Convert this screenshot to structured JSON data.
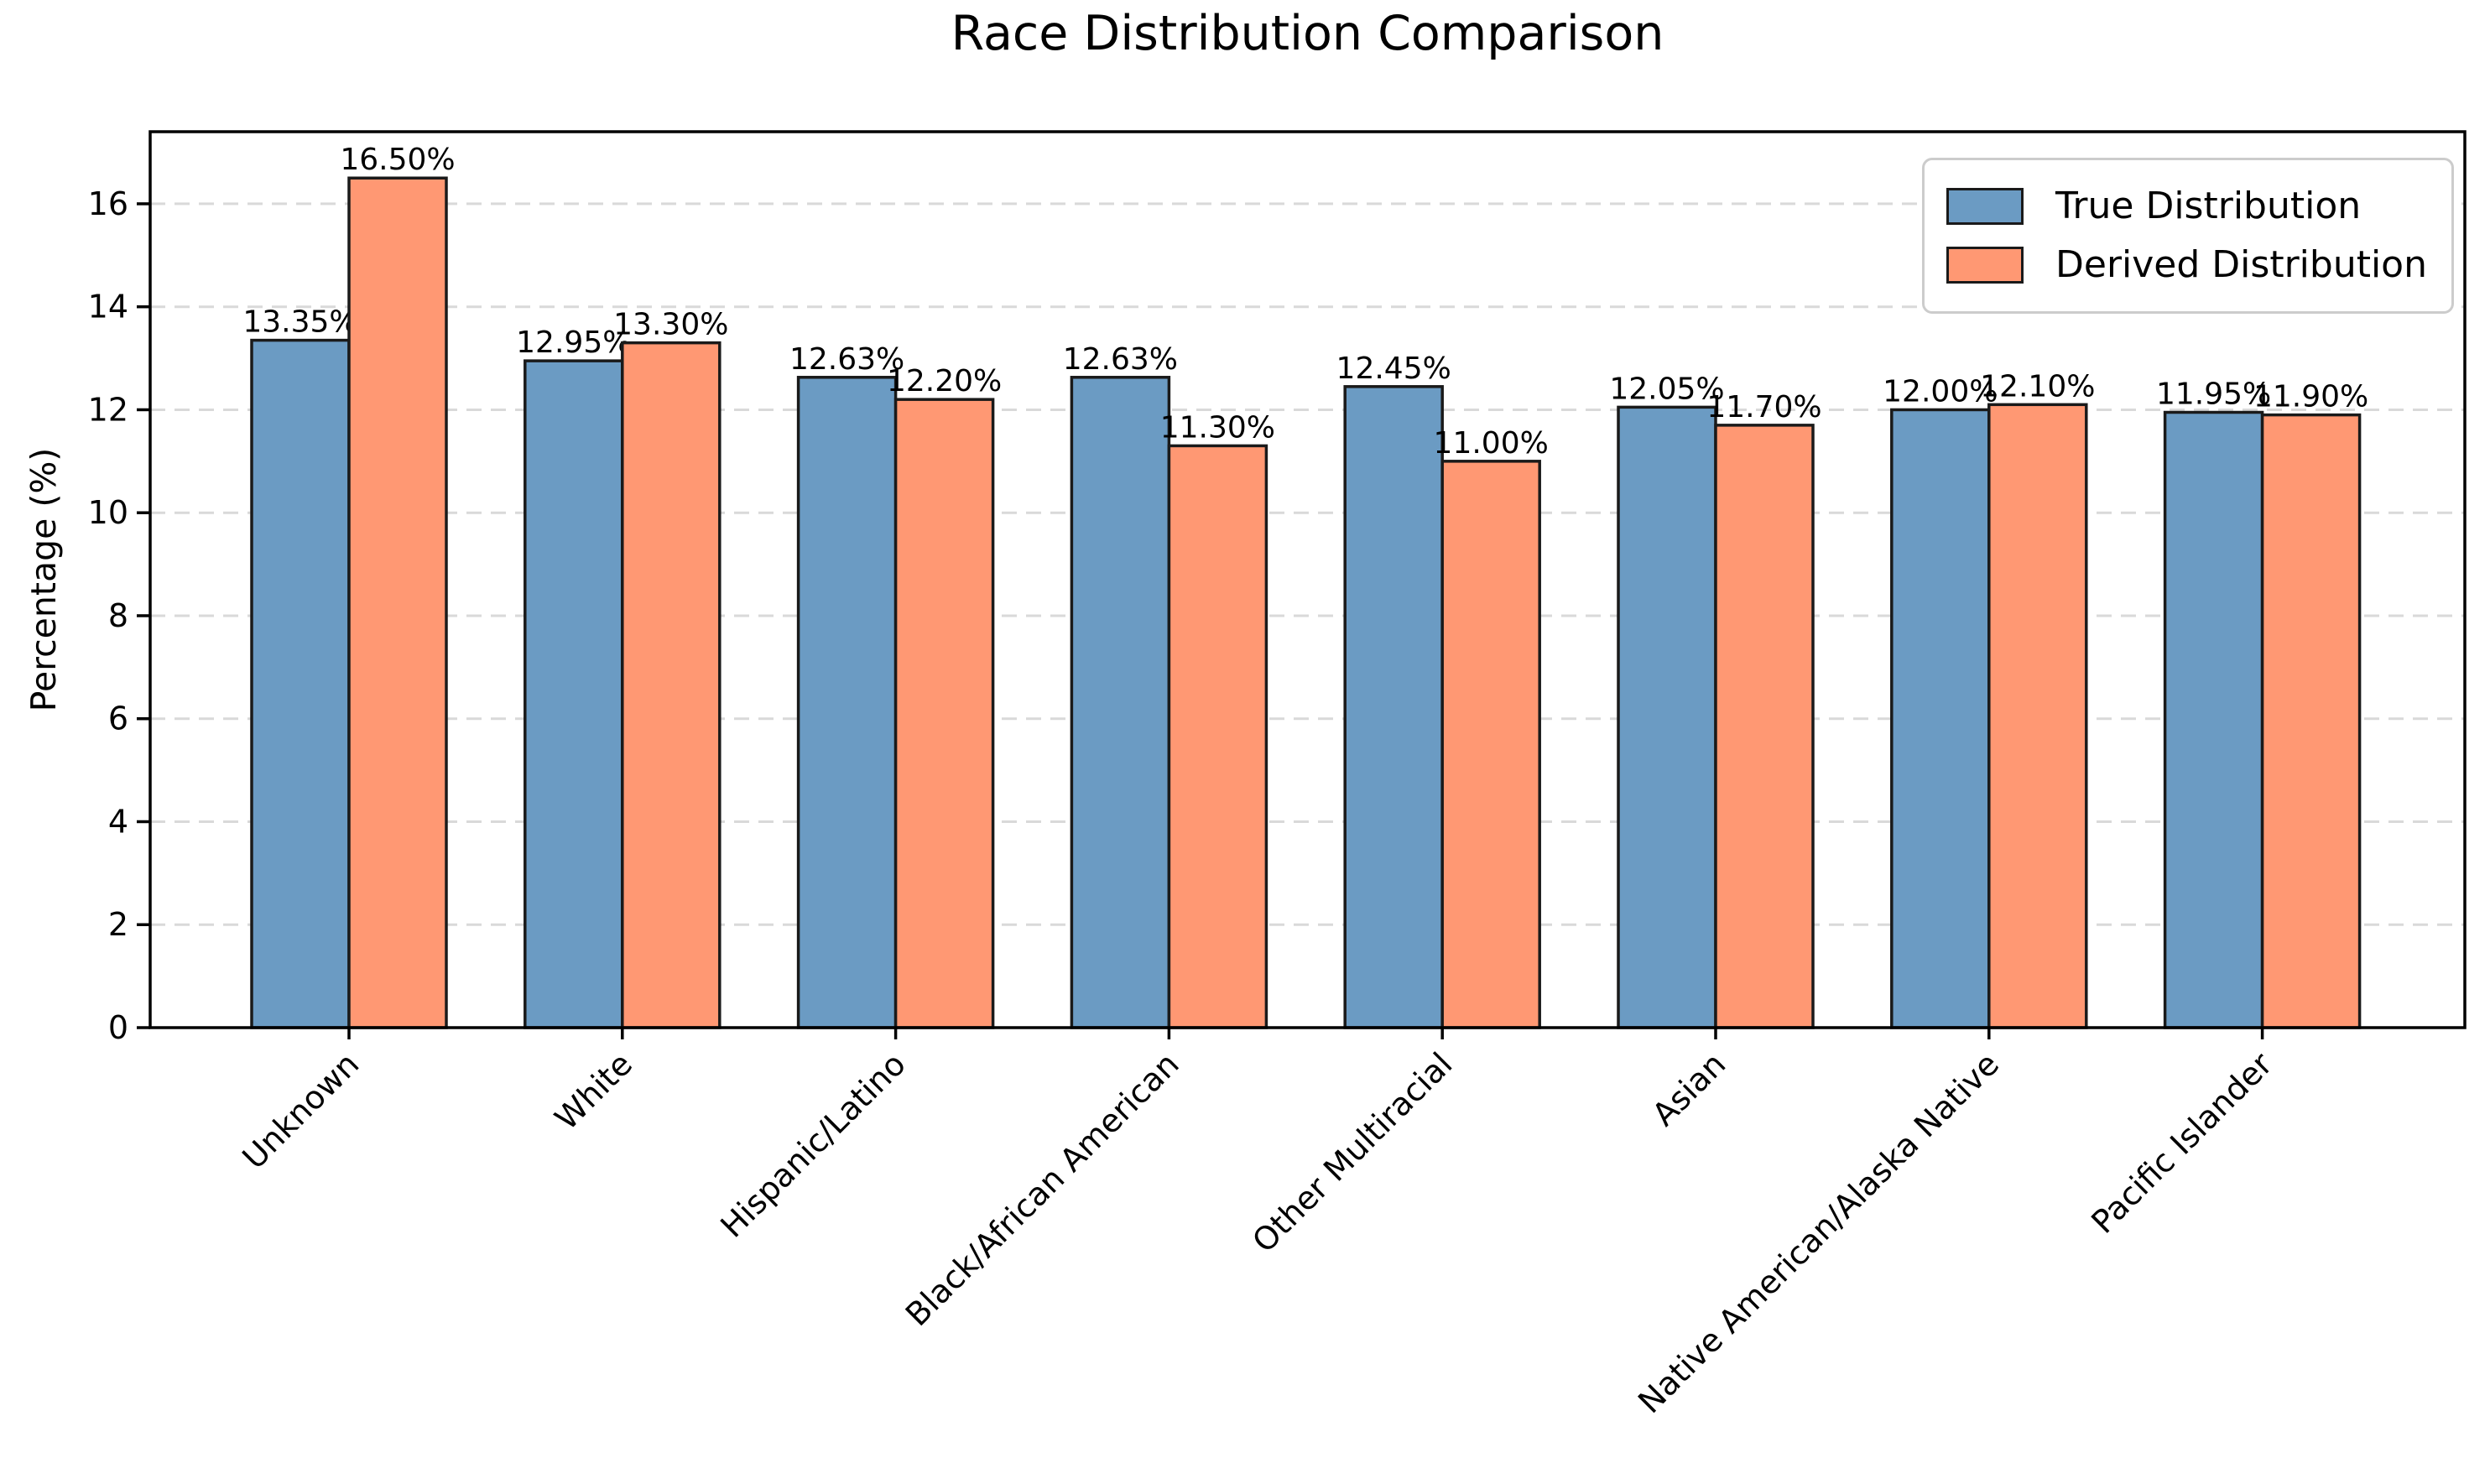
{
  "chart_data": {
    "type": "bar",
    "title": "Race Distribution Comparison",
    "xlabel": "",
    "ylabel": "Percentage (%)",
    "categories": [
      "Unknown",
      "White",
      "Hispanic/Latino",
      "Black/African American",
      "Other Multiracial",
      "Asian",
      "Native American/Alaska Native",
      "Pacific Islander"
    ],
    "series": [
      {
        "name": "True Distribution",
        "color": "#6B9BC3",
        "values": [
          13.35,
          12.95,
          12.63,
          12.63,
          12.45,
          12.05,
          12.0,
          11.95
        ],
        "labels": [
          "13.35%",
          "12.95%",
          "12.63%",
          "12.63%",
          "12.45%",
          "12.05%",
          "12.00%",
          "11.95%"
        ]
      },
      {
        "name": "Derived Distribution",
        "color": "#FF9873",
        "values": [
          16.5,
          13.3,
          12.2,
          11.3,
          11.0,
          11.7,
          12.1,
          11.9
        ],
        "labels": [
          "16.50%",
          "13.30%",
          "12.20%",
          "11.30%",
          "11.00%",
          "11.70%",
          "12.10%",
          "11.90%"
        ]
      }
    ],
    "yticks": [
      0,
      2,
      4,
      6,
      8,
      10,
      12,
      14,
      16
    ],
    "ytick_labels": [
      "0",
      "2",
      "4",
      "6",
      "8",
      "10",
      "12",
      "14",
      "16"
    ],
    "ylim": [
      0,
      17.4
    ],
    "grid": "horizontal-dashed",
    "grid_color": "#d9d9d9",
    "legend_position": "upper right",
    "bar_edge_color": "#1a1a1a",
    "axis_color": "#000000",
    "text_color": "#000000",
    "background_color": "#ffffff"
  },
  "legend": {
    "entries": [
      {
        "label": "True Distribution",
        "color": "#6B9BC3"
      },
      {
        "label": "Derived Distribution",
        "color": "#FF9873"
      }
    ]
  }
}
